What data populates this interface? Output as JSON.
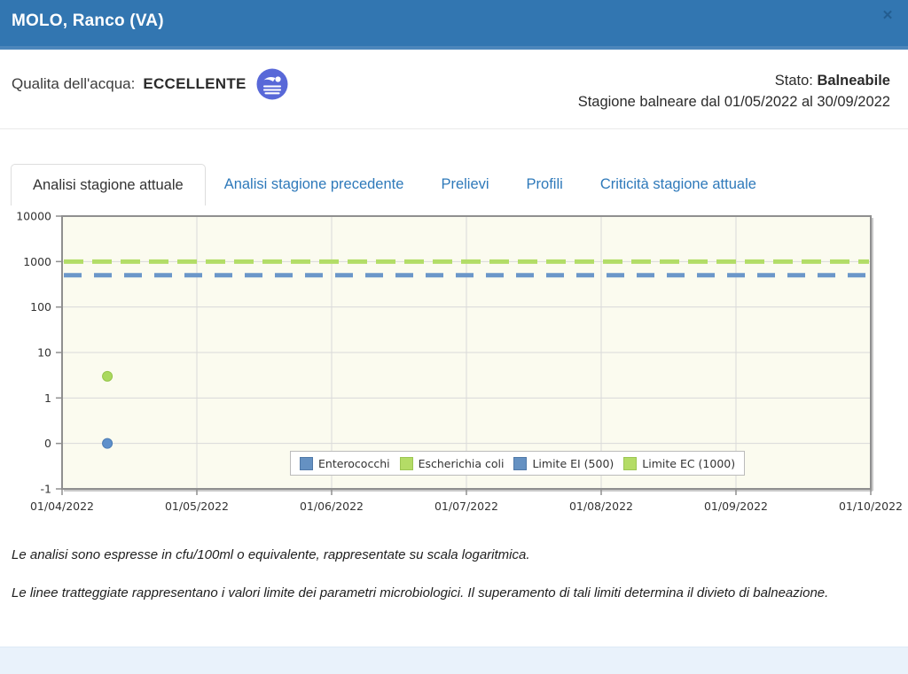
{
  "header": {
    "title": "MOLO, Ranco (VA)",
    "close_glyph": "✕"
  },
  "info": {
    "quality_label": "Qualita dell'acqua:",
    "quality_value": "ECCELLENTE",
    "quality_badge_icon": "swimmer-badge",
    "status_label": "Stato:",
    "status_value": "Balneabile",
    "season_text": "Stagione balneare dal 01/05/2022 al 30/09/2022"
  },
  "tabs": [
    {
      "label": "Analisi stagione attuale",
      "active": true
    },
    {
      "label": "Analisi stagione precedente",
      "active": false
    },
    {
      "label": "Prelievi",
      "active": false
    },
    {
      "label": "Profili",
      "active": false
    },
    {
      "label": "Criticità stagione attuale",
      "active": false
    }
  ],
  "chart_data": {
    "type": "scatter",
    "scale": "logarithmic (symlog: 10000,1000,100,10,1,0,-1 equally spaced)",
    "title": "",
    "xlabel": "",
    "ylabel": "",
    "y_ticks": [
      "10000",
      "1000",
      "100",
      "10",
      "1",
      "0",
      "-1"
    ],
    "x_ticks": [
      "01/04/2022",
      "01/05/2022",
      "01/06/2022",
      "01/07/2022",
      "01/08/2022",
      "01/09/2022",
      "01/10/2022"
    ],
    "grid": true,
    "plot_bg": "#fbfbef",
    "frame_color": "#8f8f8f",
    "grid_color": "#d9d9d9",
    "series": [
      {
        "name": "Enterococchi",
        "color": "#5e90cb",
        "stroke": "#4c7cb4",
        "points": [
          {
            "x_frac": 0.056,
            "value": 0
          }
        ]
      },
      {
        "name": "Escherichia coli",
        "color": "#aad95e",
        "stroke": "#95c449",
        "points": [
          {
            "x_frac": 0.056,
            "value": 3
          }
        ]
      }
    ],
    "limits": [
      {
        "name": "Limite EC (1000)",
        "value": 1000,
        "color": "#b2dd67",
        "dash": "22 10"
      },
      {
        "name": "Limite EI (500)",
        "value": 500,
        "color": "#6b97c9",
        "dash": "20 14"
      }
    ],
    "legend_position": "bottom-center",
    "legend": [
      {
        "label": "Enterococchi",
        "color": "#6591c2",
        "border": "#5079a8"
      },
      {
        "label": "Escherichia coli",
        "color": "#b4dc66",
        "border": "#9cc653"
      },
      {
        "label": "Limite EI (500)",
        "color": "#6591c2",
        "border": "#5079a8"
      },
      {
        "label": "Limite EC (1000)",
        "color": "#b4dc66",
        "border": "#9cc653"
      }
    ]
  },
  "notes": [
    "Le analisi sono espresse in cfu/100ml o equivalente, rappresentate su scala logaritmica.",
    "Le linee tratteggiate rappresentano i valori limite dei parametri microbiologici. Il superamento di tali limiti determina il divieto di balneazione."
  ],
  "colors": {
    "header_bg": "#3276b1",
    "tab_link": "#2e79ba",
    "footer_bar": "#e9f2fb"
  }
}
